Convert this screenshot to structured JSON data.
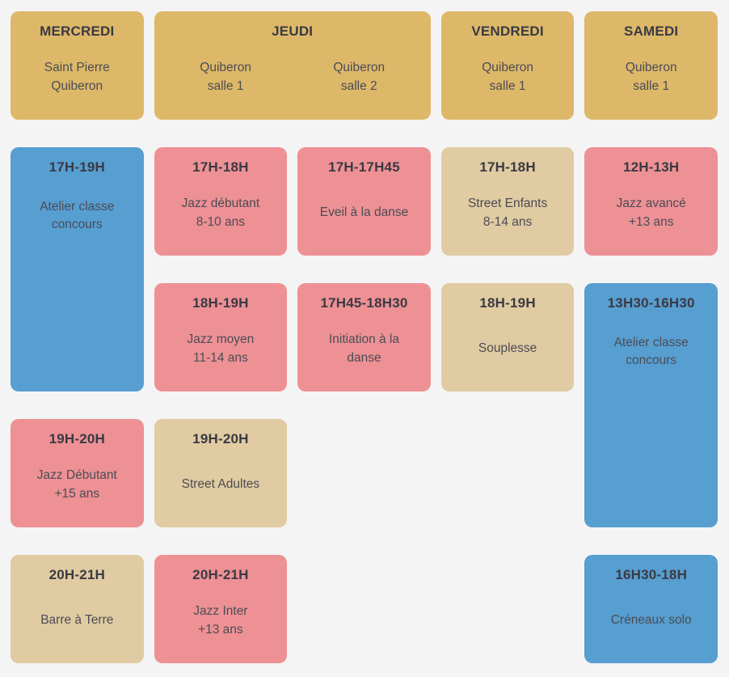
{
  "palette": {
    "background": "#f4f4f5",
    "gold": "#ddb869",
    "tan": "#e0cba2",
    "pink": "#ed9195",
    "blue": "#579ed1",
    "heading_text": "#3a3a43",
    "body_text": "#4c4c54"
  },
  "headers": [
    {
      "day": "MERCREDI",
      "locations": [
        "Saint Pierre\nQuiberon"
      ]
    },
    {
      "day": "JEUDI",
      "locations": [
        "Quiberon\nsalle 1",
        "Quiberon\nsalle 2"
      ]
    },
    {
      "day": "VENDREDI",
      "locations": [
        "Quiberon\nsalle 1"
      ]
    },
    {
      "day": "SAMEDI",
      "locations": [
        "Quiberon\nsalle 1"
      ]
    }
  ],
  "classes": [
    {
      "time": "17H-19H",
      "label": "Atelier classe\nconcours",
      "color": "blue"
    },
    {
      "time": "17H-18H",
      "label": "Jazz débutant\n8-10 ans",
      "color": "pink"
    },
    {
      "time": "17H-17H45",
      "label": "Eveil à la danse",
      "color": "pink"
    },
    {
      "time": "17H-18H",
      "label": "Street Enfants\n8-14 ans",
      "color": "tan"
    },
    {
      "time": "12H-13H",
      "label": "Jazz avancé\n+13 ans",
      "color": "pink"
    },
    {
      "time": "18H-19H",
      "label": "Jazz moyen\n11-14 ans",
      "color": "pink"
    },
    {
      "time": "17H45-18H30",
      "label": "Initiation à la\ndanse",
      "color": "pink"
    },
    {
      "time": "18H-19H",
      "label": "Souplesse",
      "color": "tan"
    },
    {
      "time": "13H30-16H30",
      "label": "Atelier classe\nconcours",
      "color": "blue"
    },
    {
      "time": "19H-20H",
      "label": "Jazz Débutant\n+15 ans",
      "color": "pink"
    },
    {
      "time": "19H-20H",
      "label": "Street Adultes",
      "color": "tan"
    },
    {
      "time": "20H-21H",
      "label": "Barre à Terre",
      "color": "tan"
    },
    {
      "time": "20H-21H",
      "label": "Jazz Inter\n+13 ans",
      "color": "pink"
    },
    {
      "time": "16H30-18H",
      "label": "Créneaux solo",
      "color": "blue"
    }
  ]
}
